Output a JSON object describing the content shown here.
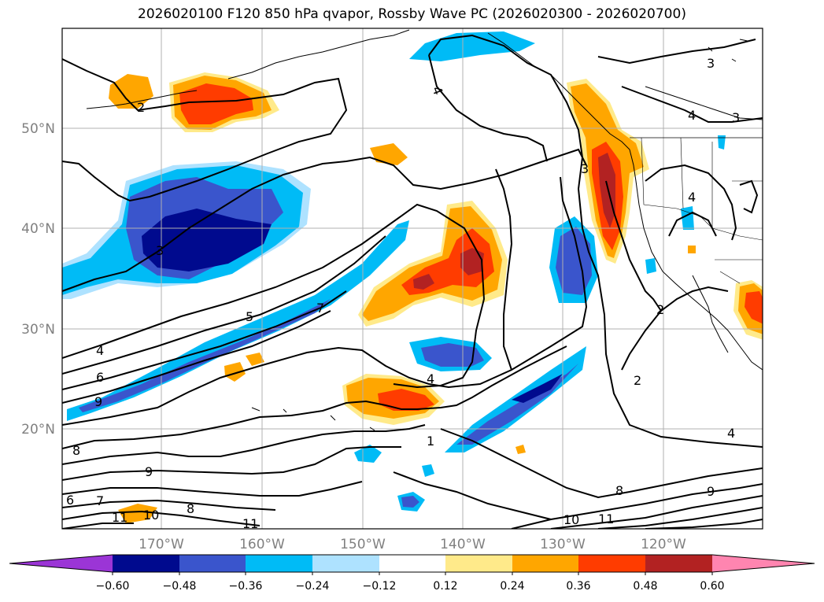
{
  "title": "2026020100 F120 850 hPa qvapor, Rossby Wave PC (2026020300 - 2026020700)",
  "lat_labels": [
    "50°N",
    "40°N",
    "30°N",
    "20°N"
  ],
  "lon_labels": [
    "170°W",
    "160°W",
    "150°W",
    "140°W",
    "130°W",
    "120°W"
  ],
  "contour_labels": [
    "2",
    "3",
    "4",
    "3",
    "4",
    "3",
    "4",
    "3",
    "5",
    "7",
    "4",
    "6",
    "9",
    "4",
    "1",
    "2",
    "2",
    "8",
    "9",
    "6",
    "7",
    "8",
    "11",
    "10",
    "11",
    "10",
    "11",
    "8",
    "9",
    "4"
  ],
  "colorbar": {
    "ticks": [
      "−0.60",
      "−0.48",
      "−0.36",
      "−0.24",
      "−0.12",
      "0.12",
      "0.24",
      "0.36",
      "0.48",
      "0.60"
    ],
    "colors": [
      "#9b35d6",
      "#000a8e",
      "#3a55cc",
      "#00bbf6",
      "#aee2ff",
      "#ffffff",
      "#ffea8a",
      "#ffa600",
      "#ff3c00",
      "#b22222",
      "#ff85b0"
    ]
  }
}
